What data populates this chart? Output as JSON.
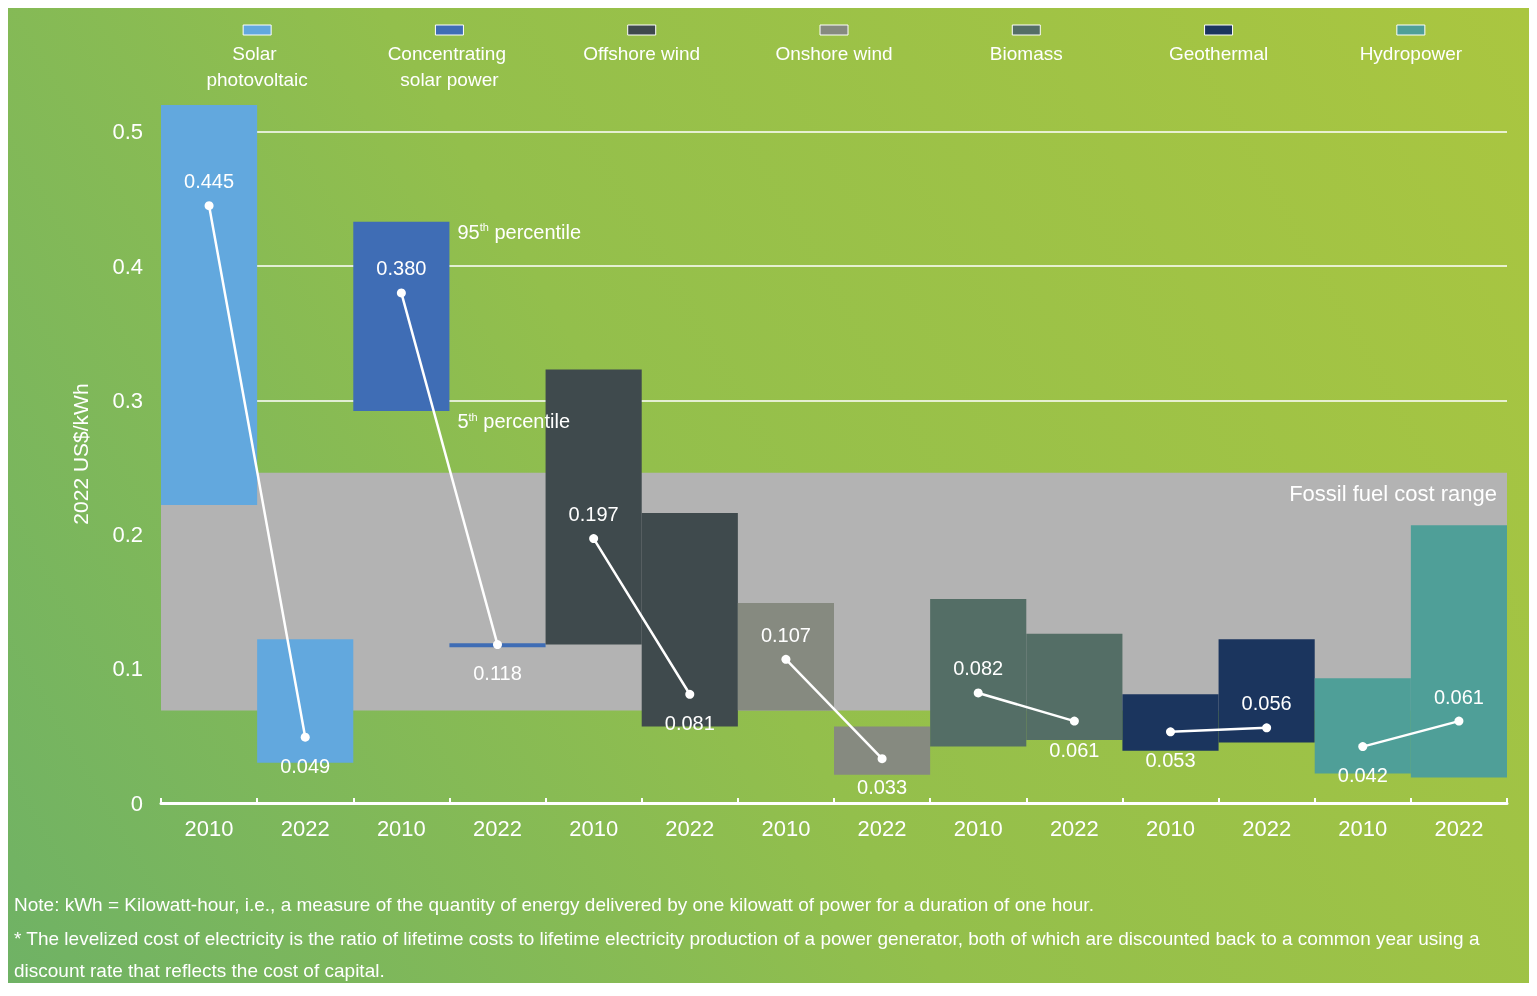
{
  "chart_data": {
    "type": "bar",
    "ylabel": "2022 US$/kWh",
    "categories": [
      "2010",
      "2022",
      "2010",
      "2022",
      "2010",
      "2022",
      "2010",
      "2022",
      "2010",
      "2022",
      "2010",
      "2022",
      "2010",
      "2022"
    ],
    "ylim": [
      0,
      0.52
    ],
    "yticks": [
      0,
      0.1,
      0.2,
      0.3,
      0.4,
      0.5
    ],
    "grid": "y",
    "series": [
      {
        "name": "Solar photovoltaic",
        "color": "#62a8de",
        "values": [
          0.298,
          0.092,
          null,
          null,
          null,
          null,
          null,
          null,
          null,
          null,
          null,
          null,
          null,
          null
        ],
        "base": [
          0.222,
          0.03,
          null,
          null,
          null,
          null,
          null,
          null,
          null,
          null,
          null,
          null,
          null,
          null
        ]
      },
      {
        "name": "Concentrating solar power",
        "color": "#3f6db5",
        "values": [
          null,
          null,
          0.141,
          0.003,
          null,
          null,
          null,
          null,
          null,
          null,
          null,
          null,
          null,
          null
        ],
        "base": [
          null,
          null,
          0.292,
          0.116,
          null,
          null,
          null,
          null,
          null,
          null,
          null,
          null,
          null,
          null
        ]
      },
      {
        "name": "Offshore wind",
        "color": "#3f4a4d",
        "values": [
          null,
          null,
          null,
          null,
          0.205,
          0.159,
          null,
          null,
          null,
          null,
          null,
          null,
          null,
          null
        ],
        "base": [
          null,
          null,
          null,
          null,
          0.118,
          0.057,
          null,
          null,
          null,
          null,
          null,
          null,
          null,
          null
        ]
      },
      {
        "name": "Onshore wind",
        "color": "#868a80",
        "values": [
          null,
          null,
          null,
          null,
          null,
          null,
          0.08,
          0.036,
          null,
          null,
          null,
          null,
          null,
          null
        ],
        "base": [
          null,
          null,
          null,
          null,
          null,
          null,
          0.069,
          0.021,
          null,
          null,
          null,
          null,
          null,
          null
        ]
      },
      {
        "name": "Biomass",
        "color": "#546e66",
        "values": [
          null,
          null,
          null,
          null,
          null,
          null,
          null,
          null,
          0.11,
          0.079,
          null,
          null,
          null,
          null
        ],
        "base": [
          null,
          null,
          null,
          null,
          null,
          null,
          null,
          null,
          0.042,
          0.047,
          null,
          null,
          null,
          null
        ]
      },
      {
        "name": "Geothermal",
        "color": "#1b355e",
        "values": [
          null,
          null,
          null,
          null,
          null,
          null,
          null,
          null,
          null,
          null,
          0.042,
          0.077,
          null,
          null
        ],
        "base": [
          null,
          null,
          null,
          null,
          null,
          null,
          null,
          null,
          null,
          null,
          0.039,
          0.045,
          null,
          null
        ]
      },
      {
        "name": "Hydropower",
        "color": "#4f9f98",
        "values": [
          null,
          null,
          null,
          null,
          null,
          null,
          null,
          null,
          null,
          null,
          null,
          null,
          0.071,
          0.188
        ],
        "base": [
          null,
          null,
          null,
          null,
          null,
          null,
          null,
          null,
          null,
          null,
          null,
          null,
          0.022,
          0.019
        ]
      },
      {
        "type": "line",
        "color": "#ffffff",
        "values": [
          0.445,
          0.049,
          null,
          null,
          null,
          null,
          null,
          null,
          null,
          null,
          null,
          null,
          null,
          null
        ],
        "value_labels": [
          "0.445",
          "0.049",
          null,
          null,
          null,
          null,
          null,
          null,
          null,
          null,
          null,
          null,
          null,
          null
        ]
      },
      {
        "type": "line",
        "color": "#ffffff",
        "values": [
          null,
          null,
          0.38,
          0.118,
          null,
          null,
          null,
          null,
          null,
          null,
          null,
          null,
          null,
          null
        ],
        "value_labels": [
          null,
          null,
          "0.380",
          "0.118",
          null,
          null,
          null,
          null,
          null,
          null,
          null,
          null,
          null,
          null
        ]
      },
      {
        "type": "line",
        "color": "#ffffff",
        "values": [
          null,
          null,
          null,
          null,
          0.197,
          0.081,
          null,
          null,
          null,
          null,
          null,
          null,
          null,
          null
        ],
        "value_labels": [
          null,
          null,
          null,
          null,
          "0.197",
          "0.081",
          null,
          null,
          null,
          null,
          null,
          null,
          null,
          null
        ]
      },
      {
        "type": "line",
        "color": "#ffffff",
        "values": [
          null,
          null,
          null,
          null,
          null,
          null,
          0.107,
          0.033,
          null,
          null,
          null,
          null,
          null,
          null
        ],
        "value_labels": [
          null,
          null,
          null,
          null,
          null,
          null,
          "0.107",
          "0.033",
          null,
          null,
          null,
          null,
          null,
          null
        ]
      },
      {
        "type": "line",
        "color": "#ffffff",
        "values": [
          null,
          null,
          null,
          null,
          null,
          null,
          null,
          null,
          0.082,
          0.061,
          null,
          null,
          null,
          null
        ],
        "value_labels": [
          null,
          null,
          null,
          null,
          null,
          null,
          null,
          null,
          "0.082",
          "0.061",
          null,
          null,
          null,
          null
        ]
      },
      {
        "type": "line",
        "color": "#ffffff",
        "values": [
          null,
          null,
          null,
          null,
          null,
          null,
          null,
          null,
          null,
          null,
          0.053,
          0.056,
          null,
          null
        ],
        "value_labels": [
          null,
          null,
          null,
          null,
          null,
          null,
          null,
          null,
          null,
          null,
          "0.053",
          "0.056",
          null,
          null
        ]
      },
      {
        "type": "line",
        "color": "#ffffff",
        "values": [
          null,
          null,
          null,
          null,
          null,
          null,
          null,
          null,
          null,
          null,
          null,
          null,
          0.042,
          0.061
        ],
        "value_labels": [
          null,
          null,
          null,
          null,
          null,
          null,
          null,
          null,
          null,
          null,
          null,
          null,
          "0.042",
          "0.061"
        ]
      }
    ],
    "marker": "circle",
    "legend": "top",
    "bands": [
      {
        "axis": "y",
        "from": 0.069,
        "to": 0.246,
        "label": "Fossil fuel cost range",
        "color": "#b3b3b3"
      }
    ],
    "annotations": [
      "95$^{th}$ percentile",
      "5$^{th}$ percentile",
      "Note: kWh = Kilowatt-hour, i.e., a measure of the quantity of energy delivered by one kilowatt of power for a duration of one hour.",
      "* The levelized cost of electricity is the ratio of lifetime costs to lifetime electricity production of a power generator, both of which are discounted back to a common year using a discount rate that reflects the cost of capital."
    ]
  }
}
